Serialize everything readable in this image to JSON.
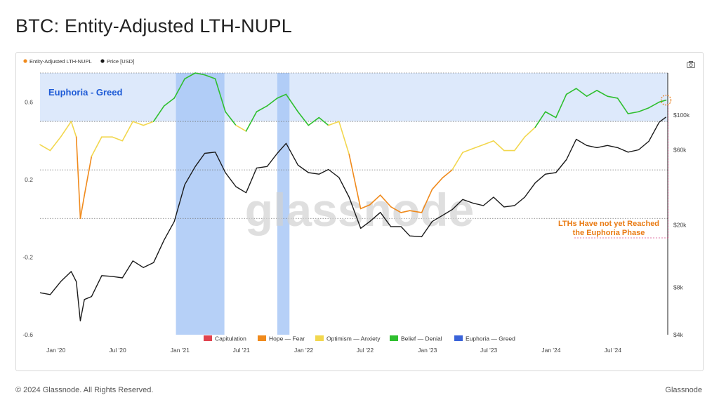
{
  "page": {
    "title": "BTC: Entity-Adjusted LTH-NUPL",
    "footer_left": "© 2024 Glassnode. All Rights Reserved.",
    "footer_right": "Glassnode",
    "watermark": "glassnode",
    "camera_icon": "camera-icon"
  },
  "colors": {
    "capitulation": "#e0434f",
    "hope": "#f08a1c",
    "optimism": "#f2d74e",
    "belief": "#2fbf2f",
    "euphoria": "#3a63d9",
    "price": "#1a1a1a",
    "band": "#dde9fb",
    "highlight": "#a9c8f6",
    "annotation": "#e97a12"
  },
  "chart_data": {
    "type": "line",
    "title": "BTC: Entity-Adjusted LTH-NUPL",
    "legend_top": [
      {
        "label": "Entity-Adjusted LTH-NUPL",
        "color": "#f08a1c"
      },
      {
        "label": "Price [USD]",
        "color": "#1a1a1a"
      }
    ],
    "legend_bottom": [
      {
        "label": "Capitulation",
        "color": "#e0434f"
      },
      {
        "label": "Hope — Fear",
        "color": "#f08a1c"
      },
      {
        "label": "Optimism — Anxiety",
        "color": "#f2d74e"
      },
      {
        "label": "Belief — Denial",
        "color": "#2fbf2f"
      },
      {
        "label": "Euphoria — Greed",
        "color": "#3a63d9"
      }
    ],
    "x_ticks": [
      "Jan '20",
      "Jul '20",
      "Jan '21",
      "Jul '21",
      "Jan '22",
      "Jul '22",
      "Jan '23",
      "Jul '23",
      "Jan '24",
      "Jul '24"
    ],
    "x_tick_dates": [
      "2020-01-01",
      "2020-07-01",
      "2021-01-01",
      "2021-07-01",
      "2022-01-01",
      "2022-07-01",
      "2023-01-01",
      "2023-07-01",
      "2024-01-01",
      "2024-07-01"
    ],
    "x_range": [
      "2019-11-15",
      "2024-12-10"
    ],
    "y_left": {
      "ticks": [
        "0.6",
        "0.2",
        "-0.2",
        "-0.6"
      ],
      "tick_values": [
        0.6,
        0.2,
        -0.2,
        -0.6
      ],
      "range": [
        -0.6,
        0.75
      ]
    },
    "y_right": {
      "ticks": [
        "$100k",
        "$60k",
        "$20k",
        "$8k",
        "$4k"
      ],
      "tick_values": [
        100000,
        60000,
        20000,
        8000,
        4000
      ],
      "scale": "log",
      "range": [
        4000,
        185000
      ]
    },
    "zone_lines": [
      0.75,
      0.5,
      0.25,
      0.0
    ],
    "euphoria_band": {
      "label": "Euphoria - Greed",
      "from": 0.5,
      "to": 0.75
    },
    "highlight_periods": [
      [
        "2020-12-20",
        "2021-05-12"
      ],
      [
        "2021-10-15",
        "2021-11-20"
      ]
    ],
    "annotation": {
      "text_line1": "LTHs Have not yet Reached",
      "text_line2": "the Euphoria Phase"
    },
    "nupl_series": {
      "name": "Entity-Adjusted LTH-NUPL",
      "x": [
        "2019-11-15",
        "2019-12-15",
        "2020-01-15",
        "2020-02-15",
        "2020-03-01",
        "2020-03-13",
        "2020-03-25",
        "2020-04-15",
        "2020-05-15",
        "2020-06-15",
        "2020-07-15",
        "2020-08-15",
        "2020-09-15",
        "2020-10-15",
        "2020-11-15",
        "2020-12-15",
        "2021-01-15",
        "2021-02-15",
        "2021-03-15",
        "2021-04-15",
        "2021-05-15",
        "2021-06-15",
        "2021-07-15",
        "2021-08-15",
        "2021-09-15",
        "2021-10-15",
        "2021-11-10",
        "2021-12-15",
        "2022-01-15",
        "2022-02-15",
        "2022-03-15",
        "2022-04-15",
        "2022-05-15",
        "2022-06-18",
        "2022-07-15",
        "2022-08-15",
        "2022-09-15",
        "2022-10-15",
        "2022-11-10",
        "2022-12-15",
        "2023-01-15",
        "2023-02-15",
        "2023-03-15",
        "2023-04-15",
        "2023-05-15",
        "2023-06-15",
        "2023-07-15",
        "2023-08-15",
        "2023-09-15",
        "2023-10-15",
        "2023-11-15",
        "2023-12-15",
        "2024-01-15",
        "2024-02-15",
        "2024-03-15",
        "2024-04-15",
        "2024-05-15",
        "2024-06-15",
        "2024-07-15",
        "2024-08-15",
        "2024-09-15",
        "2024-10-15",
        "2024-11-15",
        "2024-12-05"
      ],
      "values": [
        0.38,
        0.35,
        0.42,
        0.5,
        0.42,
        0.0,
        0.12,
        0.32,
        0.42,
        0.42,
        0.4,
        0.5,
        0.48,
        0.5,
        0.58,
        0.62,
        0.72,
        0.75,
        0.74,
        0.72,
        0.55,
        0.48,
        0.45,
        0.55,
        0.58,
        0.62,
        0.64,
        0.55,
        0.48,
        0.52,
        0.48,
        0.5,
        0.33,
        0.05,
        0.07,
        0.12,
        0.06,
        0.03,
        0.04,
        0.03,
        0.15,
        0.21,
        0.25,
        0.34,
        0.36,
        0.38,
        0.4,
        0.35,
        0.35,
        0.42,
        0.47,
        0.55,
        0.52,
        0.64,
        0.67,
        0.63,
        0.66,
        0.63,
        0.62,
        0.54,
        0.55,
        0.57,
        0.6,
        0.61
      ],
      "zone_thresholds": [
        0.0,
        0.25,
        0.5,
        0.75
      ]
    },
    "price_series": {
      "name": "Price [USD]",
      "x": [
        "2019-11-15",
        "2019-12-15",
        "2020-01-15",
        "2020-02-15",
        "2020-03-01",
        "2020-03-13",
        "2020-03-25",
        "2020-04-15",
        "2020-05-15",
        "2020-06-15",
        "2020-07-15",
        "2020-08-15",
        "2020-09-15",
        "2020-10-15",
        "2020-11-15",
        "2020-12-15",
        "2021-01-15",
        "2021-02-15",
        "2021-03-15",
        "2021-04-15",
        "2021-05-15",
        "2021-06-15",
        "2021-07-15",
        "2021-08-15",
        "2021-09-15",
        "2021-10-15",
        "2021-11-10",
        "2021-12-15",
        "2022-01-15",
        "2022-02-15",
        "2022-03-15",
        "2022-04-15",
        "2022-05-15",
        "2022-06-18",
        "2022-07-15",
        "2022-08-15",
        "2022-09-15",
        "2022-10-15",
        "2022-11-10",
        "2022-12-15",
        "2023-01-15",
        "2023-02-15",
        "2023-03-15",
        "2023-04-15",
        "2023-05-15",
        "2023-06-15",
        "2023-07-15",
        "2023-08-15",
        "2023-09-15",
        "2023-10-15",
        "2023-11-15",
        "2023-12-15",
        "2024-01-15",
        "2024-02-15",
        "2024-03-15",
        "2024-04-15",
        "2024-05-15",
        "2024-06-15",
        "2024-07-15",
        "2024-08-15",
        "2024-09-15",
        "2024-10-15",
        "2024-11-15",
        "2024-12-05"
      ],
      "values": [
        7400,
        7200,
        8700,
        10100,
        8700,
        4900,
        6700,
        7000,
        9500,
        9400,
        9200,
        11800,
        10700,
        11500,
        16000,
        21000,
        36000,
        47000,
        57000,
        58000,
        43000,
        35000,
        32000,
        46000,
        47000,
        57000,
        66000,
        48000,
        43000,
        42000,
        45000,
        40000,
        30000,
        19000,
        21000,
        24000,
        19500,
        19500,
        17000,
        16800,
        21000,
        23000,
        25000,
        29000,
        27500,
        26500,
        30000,
        26000,
        26500,
        30000,
        37000,
        42000,
        43000,
        52000,
        70000,
        64000,
        62000,
        64000,
        62000,
        58000,
        60000,
        68000,
        90000,
        97000
      ]
    }
  }
}
